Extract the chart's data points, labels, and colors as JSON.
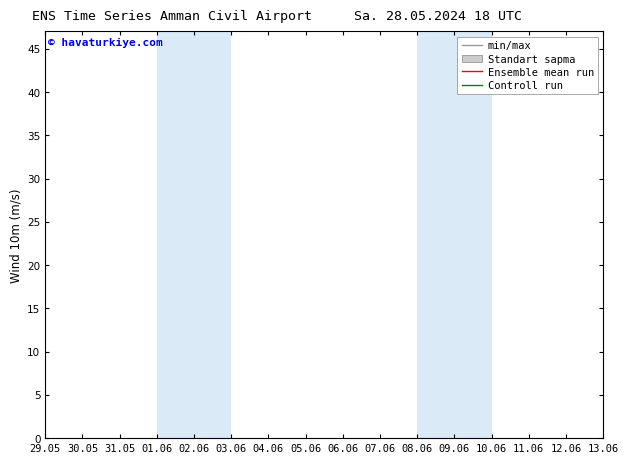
{
  "title_left": "ENS Time Series Amman Civil Airport",
  "title_right": "Sa. 28.05.2024 18 UTC",
  "ylabel": "Wind 10m (m/s)",
  "ylim": [
    0,
    47
  ],
  "yticks": [
    0,
    5,
    10,
    15,
    20,
    25,
    30,
    35,
    40,
    45
  ],
  "xtick_labels": [
    "29.05",
    "30.05",
    "31.05",
    "01.06",
    "02.06",
    "03.06",
    "04.06",
    "05.06",
    "06.06",
    "07.06",
    "08.06",
    "09.06",
    "10.06",
    "11.06",
    "12.06",
    "13.06"
  ],
  "xtick_positions": [
    0,
    1,
    2,
    3,
    4,
    5,
    6,
    7,
    8,
    9,
    10,
    11,
    12,
    13,
    14,
    15
  ],
  "shaded_regions": [
    {
      "x_start": 3,
      "x_end": 5,
      "color": "#daeaf7"
    },
    {
      "x_start": 10,
      "x_end": 12,
      "color": "#daeaf7"
    }
  ],
  "watermark_text": "© havaturkiye.com",
  "watermark_color": "#0000dd",
  "watermark_fontsize": 8,
  "background_color": "#ffffff",
  "legend_entries": [
    {
      "label": "min/max",
      "color": "#999999",
      "linewidth": 1.0
    },
    {
      "label": "Standart sapma",
      "color": "#cccccc",
      "patch": true
    },
    {
      "label": "Ensemble mean run",
      "color": "#ff0000",
      "linewidth": 1.0
    },
    {
      "label": "Controll run",
      "color": "#008000",
      "linewidth": 1.0
    }
  ],
  "title_fontsize": 9.5,
  "ylabel_fontsize": 8.5,
  "tick_fontsize": 7.5,
  "legend_fontsize": 7.5,
  "watermark_bold": true
}
